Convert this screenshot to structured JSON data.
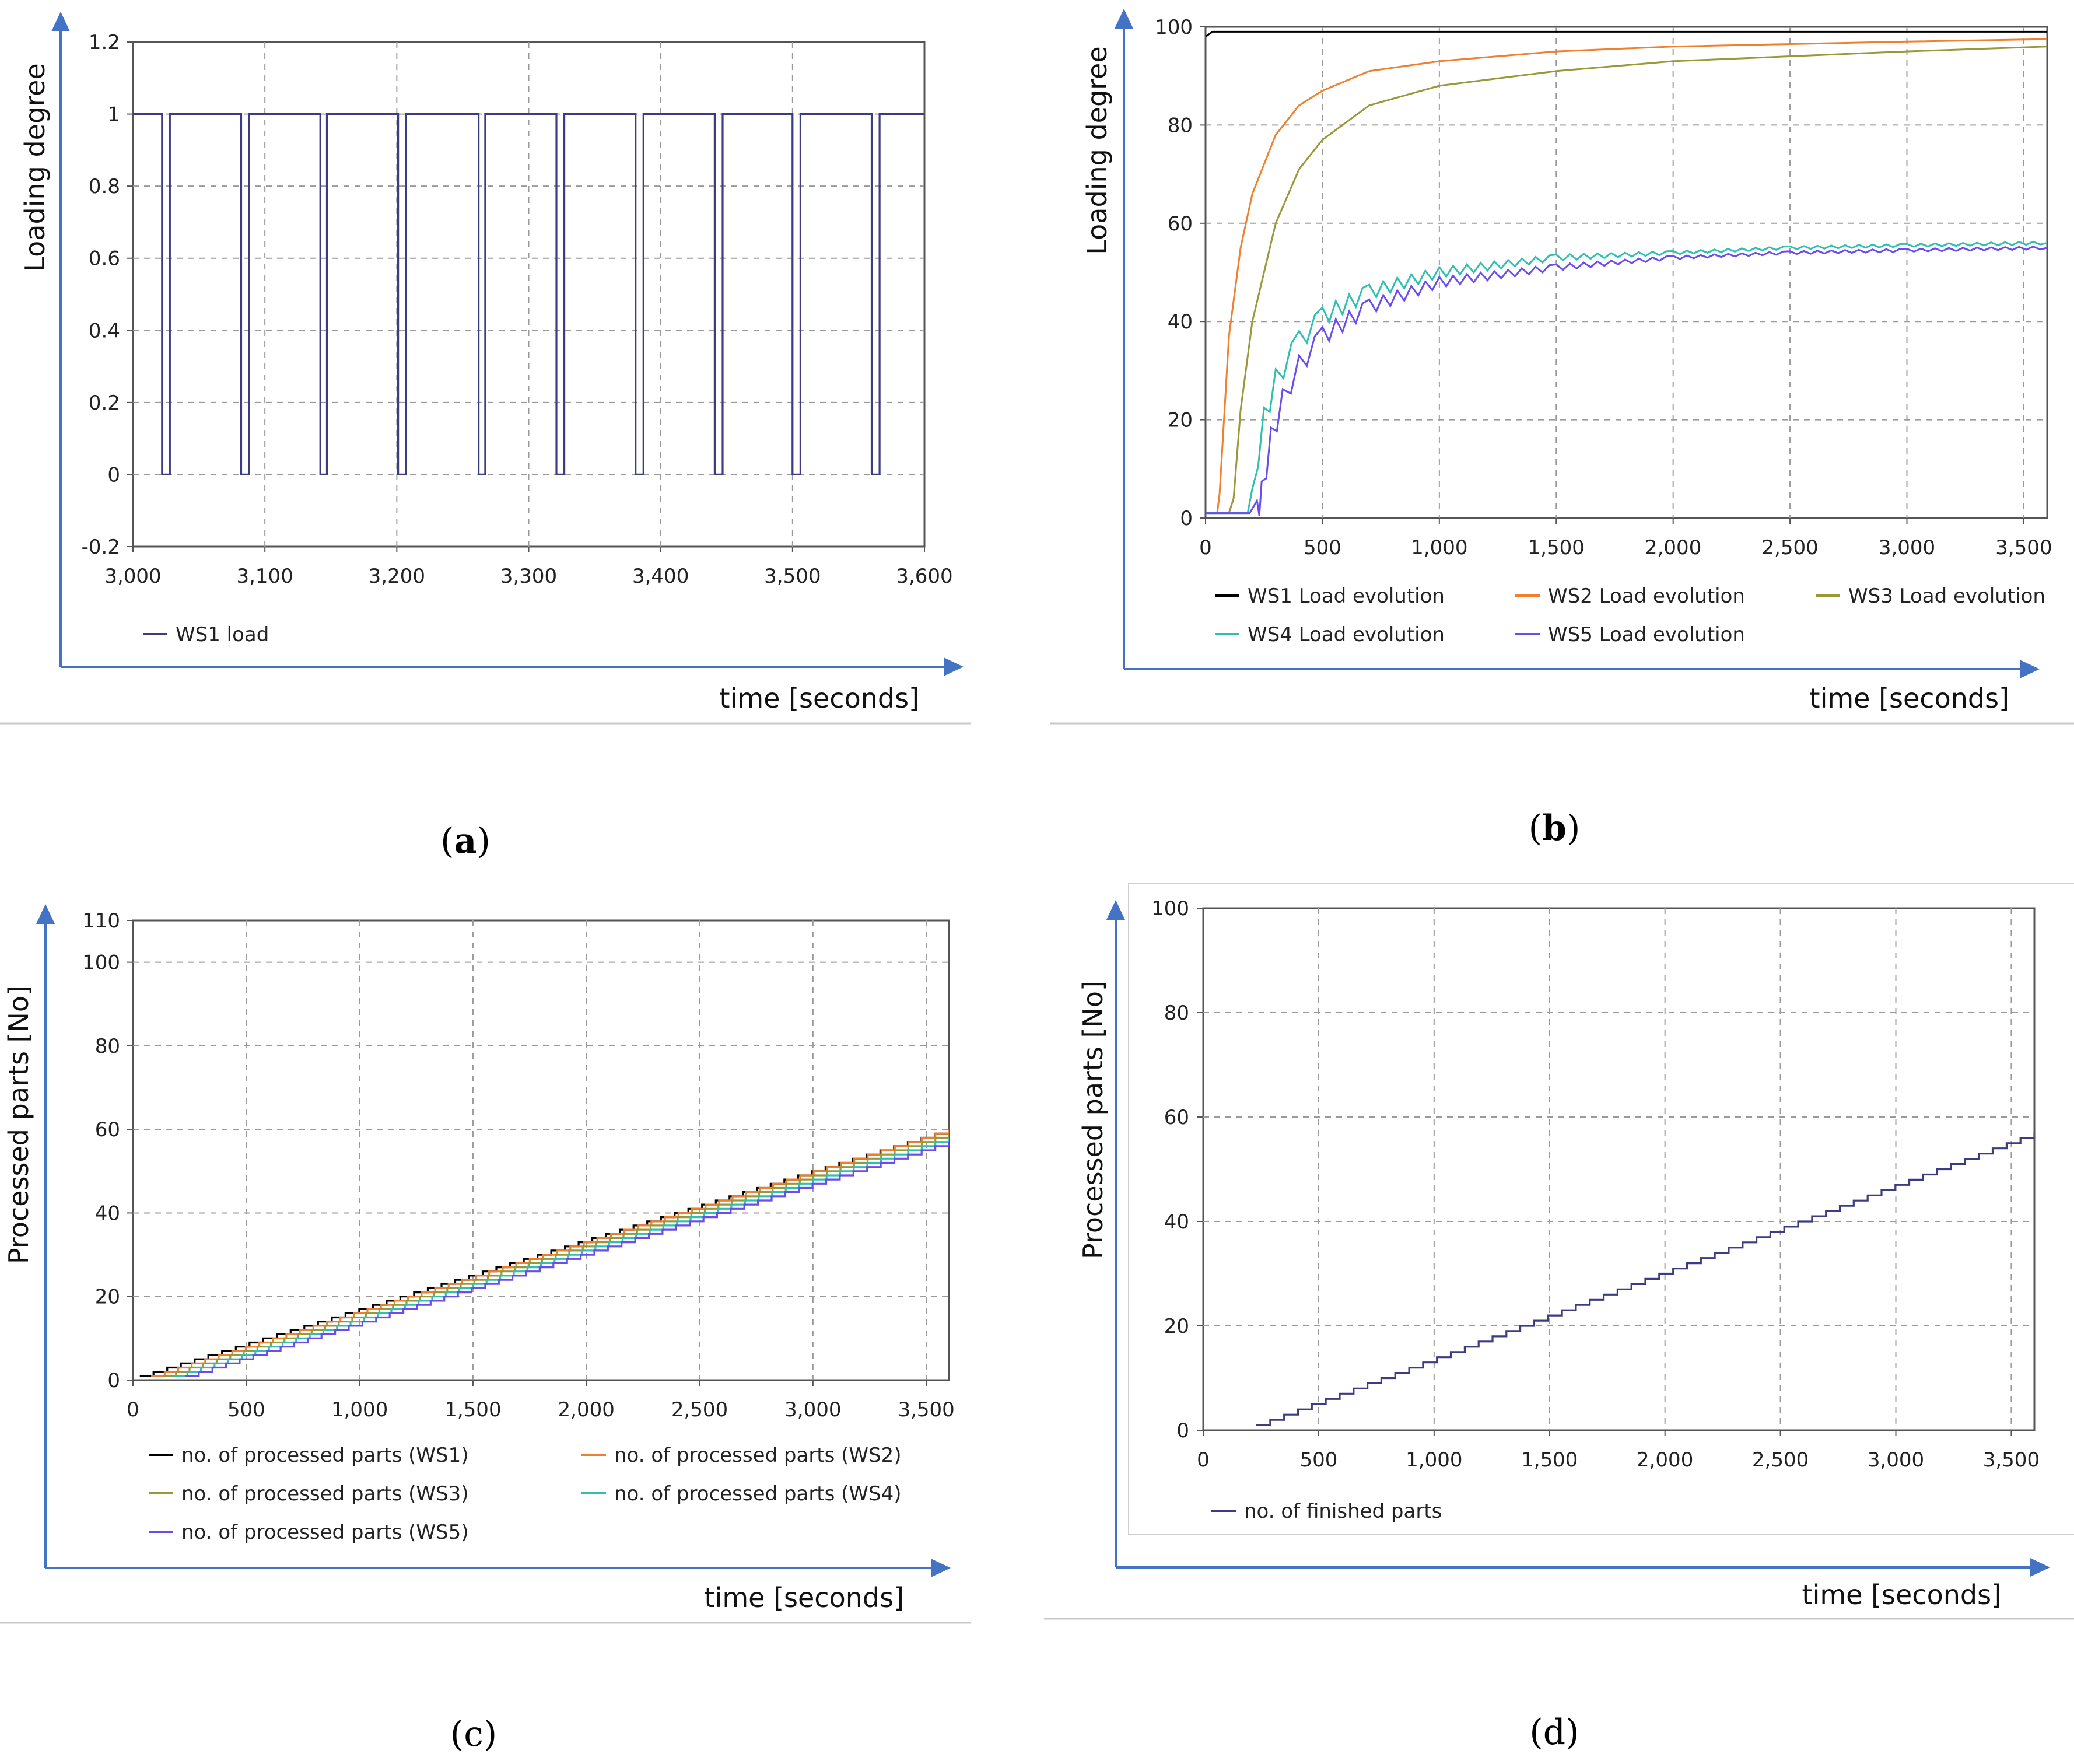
{
  "chart_data": [
    {
      "id": "a",
      "type": "line",
      "caption": "a",
      "ylabel": "Loading degree",
      "xlabel": "time [seconds]",
      "xlim": [
        3000,
        3600
      ],
      "ylim": [
        -0.2,
        1.2
      ],
      "xticks": [
        3000,
        3100,
        3200,
        3300,
        3400,
        3500,
        3600
      ],
      "xtick_labels": [
        "3,000",
        "3,100",
        "3,200",
        "3,300",
        "3,400",
        "3,500",
        "3,600"
      ],
      "yticks": [
        -0.2,
        0,
        0.2,
        0.4,
        0.6,
        0.8,
        1,
        1.2
      ],
      "ytick_labels": [
        "-0.2",
        "0",
        "0.2",
        "0.4",
        "0.6",
        "0.8",
        "1",
        "1.2"
      ],
      "grid": true,
      "legend": "bottom",
      "series": [
        {
          "name": "WS1 load",
          "color": "#3c3c82",
          "step": true,
          "x": [
            3000,
            3022,
            3022,
            3028,
            3028,
            3082,
            3082,
            3088,
            3088,
            3142,
            3142,
            3147,
            3147,
            3201,
            3201,
            3207,
            3207,
            3262,
            3262,
            3267,
            3267,
            3321,
            3321,
            3327,
            3327,
            3381,
            3381,
            3387,
            3387,
            3441,
            3441,
            3447,
            3447,
            3500,
            3500,
            3506,
            3506,
            3560,
            3560,
            3566,
            3566,
            3600
          ],
          "y": [
            1,
            1,
            0,
            0,
            1,
            1,
            0,
            0,
            1,
            1,
            0,
            0,
            1,
            1,
            0,
            0,
            1,
            1,
            0,
            0,
            1,
            1,
            0,
            0,
            1,
            1,
            0,
            0,
            1,
            1,
            0,
            0,
            1,
            1,
            0,
            0,
            1,
            1,
            0,
            0,
            1,
            1
          ]
        }
      ]
    },
    {
      "id": "b",
      "type": "line",
      "caption": "b",
      "ylabel": "Loading degree",
      "xlabel": "time [seconds]",
      "xlim": [
        0,
        3600
      ],
      "ylim": [
        0,
        100
      ],
      "xticks": [
        0,
        500,
        1000,
        1500,
        2000,
        2500,
        3000,
        3500
      ],
      "xtick_labels": [
        "0",
        "500",
        "1,000",
        "1,500",
        "2,000",
        "2,500",
        "3,000",
        "3,500"
      ],
      "yticks": [
        0,
        20,
        40,
        60,
        80,
        100
      ],
      "ytick_labels": [
        "0",
        "20",
        "40",
        "60",
        "80",
        "100"
      ],
      "grid": true,
      "legend": "bottom",
      "series": [
        {
          "name": "WS1 Load evolution",
          "color": "#000000",
          "x": [
            0,
            30,
            60,
            100,
            200,
            400,
            800,
            1500,
            2500,
            3600
          ],
          "y": [
            98,
            99,
            99,
            99,
            99,
            99,
            99,
            99,
            99,
            99
          ]
        },
        {
          "name": "WS2 Load evolution",
          "color": "#f08030",
          "x": [
            0,
            50,
            60,
            100,
            150,
            200,
            300,
            400,
            500,
            700,
            1000,
            1500,
            2000,
            2500,
            3000,
            3600
          ],
          "y": [
            1,
            1,
            5,
            37,
            55,
            66,
            78,
            84,
            87,
            91,
            93,
            95,
            96,
            96.5,
            97,
            97.5
          ]
        },
        {
          "name": "WS3 Load evolution",
          "color": "#99993a",
          "x": [
            0,
            100,
            120,
            150,
            200,
            300,
            400,
            500,
            700,
            1000,
            1500,
            2000,
            2500,
            3000,
            3600
          ],
          "y": [
            1,
            1,
            4,
            22,
            40,
            60,
            71,
            77,
            84,
            88,
            91,
            93,
            94,
            95,
            96
          ]
        },
        {
          "name": "WS4 Load evolution",
          "color": "#30c0b0",
          "x": [
            0,
            180,
            200,
            250,
            300,
            400,
            500,
            700,
            1000,
            1500,
            2000,
            2500,
            3000,
            3600
          ],
          "y": [
            1,
            1,
            6,
            20,
            28,
            36,
            41,
            46,
            50,
            53,
            54,
            55,
            55.5,
            56
          ]
        },
        {
          "name": "WS5 Load evolution",
          "color": "#6a4cf0",
          "x": [
            0,
            220,
            240,
            280,
            330,
            400,
            500,
            700,
            1000,
            1500,
            2000,
            2500,
            3000,
            3600
          ],
          "y": [
            1,
            1,
            5,
            16,
            24,
            31,
            37,
            43,
            48,
            51,
            53,
            54,
            54.5,
            55
          ]
        }
      ]
    },
    {
      "id": "c",
      "type": "line",
      "caption": "c",
      "ylabel": "Processed parts [No]",
      "xlabel": "time [seconds]",
      "xlim": [
        0,
        3600
      ],
      "ylim": [
        0,
        110
      ],
      "xticks": [
        0,
        500,
        1000,
        1500,
        2000,
        2500,
        3000,
        3500
      ],
      "xtick_labels": [
        "0",
        "500",
        "1,000",
        "1,500",
        "2,000",
        "2,500",
        "3,000",
        "3,500"
      ],
      "yticks": [
        0,
        20,
        40,
        60,
        80,
        100,
        110
      ],
      "ytick_labels": [
        "0",
        "20",
        "40",
        "60",
        "80",
        "100",
        "110"
      ],
      "grid": true,
      "legend": "bottom",
      "series": [
        {
          "name": "no. of processed parts (WS1)",
          "color": "#000000",
          "step": true,
          "x": [
            30,
            3600
          ],
          "y": [
            1,
            60
          ]
        },
        {
          "name": "no. of processed parts (WS2)",
          "color": "#f08030",
          "step": true,
          "x": [
            80,
            3600
          ],
          "y": [
            1,
            59.5
          ]
        },
        {
          "name": "no. of processed parts (WS3)",
          "color": "#99993a",
          "step": true,
          "x": [
            130,
            3600
          ],
          "y": [
            1,
            59
          ]
        },
        {
          "name": "no. of processed parts (WS4)",
          "color": "#30c0b0",
          "step": true,
          "x": [
            180,
            3600
          ],
          "y": [
            1,
            58
          ]
        },
        {
          "name": "no. of processed parts (WS5)",
          "color": "#6a4cf0",
          "step": true,
          "x": [
            230,
            3600
          ],
          "y": [
            1,
            57
          ]
        }
      ]
    },
    {
      "id": "d",
      "type": "line",
      "caption": "d",
      "ylabel": "Processed parts [No]",
      "xlabel": "time [seconds]",
      "xlim": [
        0,
        3600
      ],
      "ylim": [
        0,
        100
      ],
      "xticks": [
        0,
        500,
        1000,
        1500,
        2000,
        2500,
        3000,
        3500
      ],
      "xtick_labels": [
        "0",
        "500",
        "1,000",
        "1,500",
        "2,000",
        "2,500",
        "3,000",
        "3,500"
      ],
      "yticks": [
        0,
        20,
        40,
        60,
        80,
        100
      ],
      "ytick_labels": [
        "0",
        "20",
        "40",
        "60",
        "80",
        "100"
      ],
      "grid": true,
      "legend": "bottom",
      "series": [
        {
          "name": "no. of finished parts",
          "color": "#3c3c82",
          "step": true,
          "x": [
            230,
            3600
          ],
          "y": [
            1,
            57
          ]
        }
      ]
    }
  ]
}
